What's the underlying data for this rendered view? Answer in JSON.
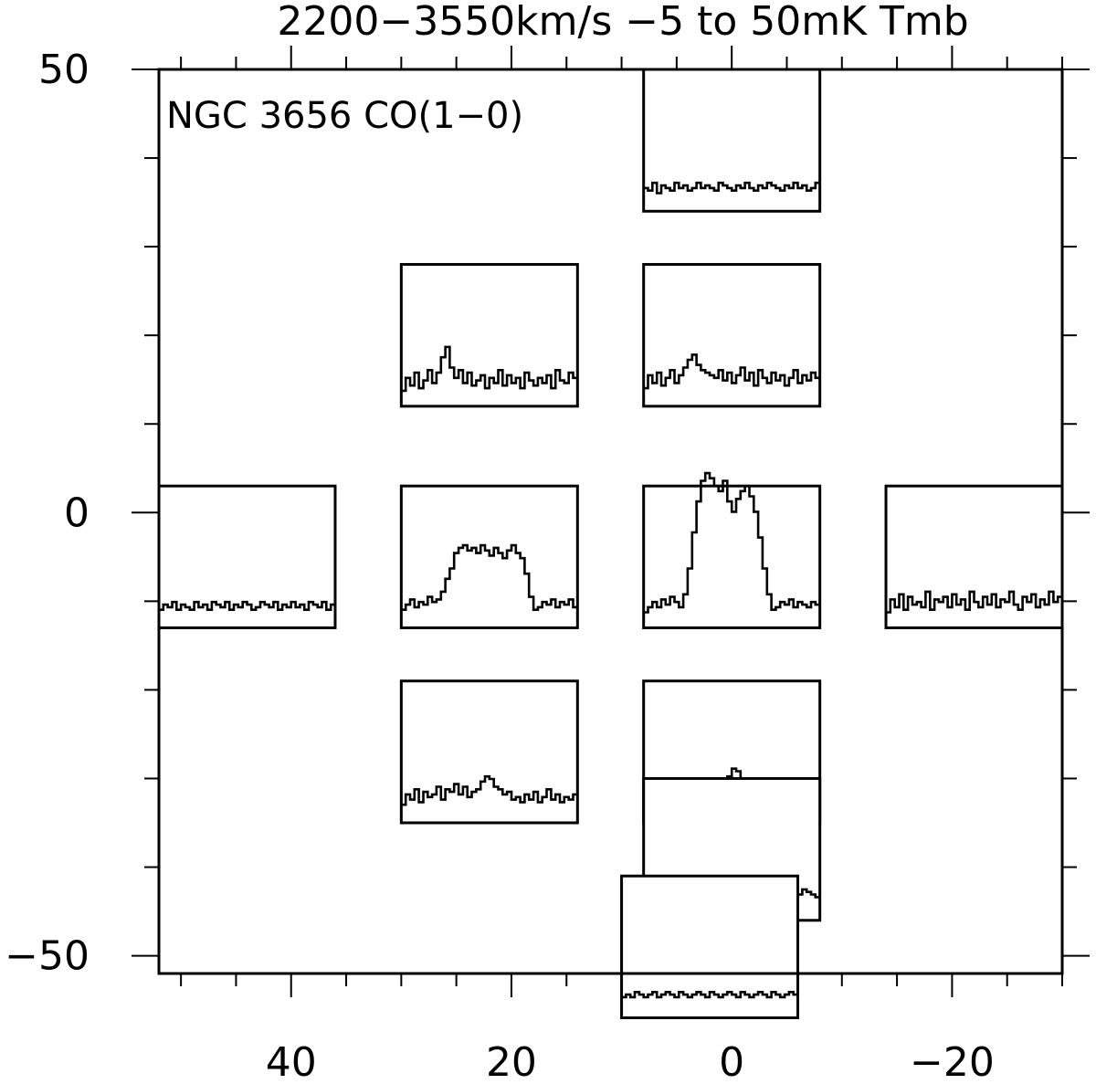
{
  "chart_data": {
    "type": "line",
    "title": "2200−3550km/s −5 to 50mK Tmb",
    "annotation": "NGC 3656 CO(1−0)",
    "xlabel": "",
    "ylabel": "",
    "xlim": [
      52,
      -30
    ],
    "ylim": [
      -52,
      50
    ],
    "x_tick_labels": [
      "40",
      "20",
      "0",
      "−20"
    ],
    "y_tick_labels": [
      "50",
      "0",
      "−50"
    ],
    "x_ticks": [
      40,
      20,
      0,
      -20
    ],
    "y_ticks": [
      50,
      0,
      -50
    ],
    "x_minor_step": 5,
    "y_minor_step": 10,
    "velocity_range_kms": [
      2200,
      3550
    ],
    "intensity_range_mK": [
      -5,
      50
    ],
    "spectra": [
      {
        "name": "",
        "offset": [
          0,
          42
        ],
        "values": [
          4,
          3,
          6,
          2,
          5,
          4,
          3,
          6,
          4,
          5,
          3,
          4,
          6,
          4,
          5,
          4,
          3,
          6,
          5,
          4,
          3,
          5,
          4,
          6,
          4,
          3,
          5,
          4,
          6,
          5,
          4,
          3,
          5,
          4,
          6,
          4,
          5,
          3,
          4,
          6
        ]
      },
      {
        "name": "",
        "offset": [
          22,
          20
        ],
        "values": [
          1,
          6,
          3,
          8,
          2,
          5,
          9,
          4,
          8,
          14,
          18,
          10,
          6,
          9,
          4,
          8,
          3,
          5,
          7,
          2,
          6,
          4,
          9,
          3,
          7,
          4,
          6,
          2,
          8,
          5,
          3,
          6,
          4,
          7,
          2,
          9,
          5,
          4,
          8,
          6
        ]
      },
      {
        "name": "",
        "offset": [
          0,
          20
        ],
        "values": [
          2,
          7,
          4,
          8,
          3,
          6,
          9,
          4,
          7,
          10,
          13,
          15,
          11,
          9,
          8,
          7,
          6,
          9,
          5,
          8,
          4,
          7,
          10,
          5,
          8,
          3,
          9,
          6,
          4,
          8,
          5,
          7,
          3,
          6,
          9,
          4,
          7,
          5,
          8,
          6
        ]
      },
      {
        "name": "",
        "offset": [
          44,
          -5
        ],
        "values": [
          2,
          4,
          3,
          5,
          2,
          4,
          3,
          2,
          5,
          3,
          4,
          2,
          5,
          4,
          3,
          5,
          2,
          4,
          3,
          5,
          4,
          2,
          3,
          5,
          4,
          3,
          5,
          2,
          4,
          3,
          5,
          3,
          4,
          2,
          5,
          4,
          3,
          5,
          2,
          4
        ]
      },
      {
        "name": "",
        "offset": [
          22,
          -5
        ],
        "values": [
          2,
          4,
          6,
          3,
          5,
          4,
          7,
          5,
          6,
          9,
          14,
          18,
          24,
          26,
          27,
          25,
          26,
          24,
          27,
          25,
          23,
          26,
          24,
          22,
          25,
          27,
          24,
          22,
          16,
          7,
          2,
          3,
          5,
          4,
          6,
          3,
          5,
          4,
          6,
          3
        ]
      },
      {
        "name": "",
        "offset": [
          0,
          -5
        ],
        "values": [
          1,
          3,
          5,
          3,
          6,
          4,
          7,
          5,
          3,
          8,
          18,
          32,
          44,
          52,
          55,
          53,
          50,
          48,
          52,
          44,
          40,
          45,
          48,
          50,
          46,
          40,
          30,
          18,
          8,
          2,
          3,
          5,
          4,
          6,
          3,
          5,
          4,
          3,
          5,
          4
        ]
      },
      {
        "name": "",
        "offset": [
          -22,
          -5
        ],
        "values": [
          1,
          6,
          3,
          8,
          2,
          7,
          4,
          5,
          3,
          9,
          2,
          6,
          5,
          7,
          3,
          8,
          4,
          6,
          2,
          9,
          5,
          3,
          7,
          4,
          8,
          3,
          6,
          5,
          9,
          4,
          2,
          7,
          5,
          8,
          3,
          6,
          4,
          9,
          5,
          7
        ]
      },
      {
        "name": "",
        "offset": [
          22,
          -27
        ],
        "values": [
          2,
          6,
          4,
          8,
          3,
          7,
          5,
          6,
          9,
          4,
          8,
          7,
          10,
          6,
          9,
          5,
          7,
          8,
          11,
          13,
          12,
          9,
          8,
          6,
          7,
          4,
          5,
          3,
          6,
          4,
          7,
          3,
          5,
          8,
          4,
          6,
          3,
          5,
          4,
          6
        ]
      },
      {
        "name": "",
        "offset": [
          0,
          -27
        ],
        "values": [
          2,
          4,
          3,
          5,
          4,
          6,
          5,
          7,
          6,
          5,
          4,
          6,
          8,
          7,
          9,
          8,
          10,
          11,
          10,
          13,
          16,
          15,
          12,
          10,
          9,
          7,
          8,
          6,
          5,
          7,
          4,
          6,
          5,
          3,
          4,
          5,
          3,
          4,
          5,
          4
        ]
      },
      {
        "name": "",
        "offset": [
          0,
          -38
        ],
        "values": [
          3,
          5,
          4,
          6,
          3,
          5,
          4,
          6,
          5,
          4,
          6,
          5,
          7,
          5,
          6,
          4,
          6,
          5,
          7,
          8,
          6,
          7,
          5,
          6,
          4,
          5,
          6,
          7,
          5,
          6,
          4,
          6,
          5,
          4,
          6,
          5,
          7,
          6,
          5,
          4
        ]
      },
      {
        "name": "",
        "offset": [
          2,
          -49
        ],
        "values": [
          3,
          4,
          3,
          5,
          4,
          3,
          4,
          5,
          3,
          4,
          5,
          4,
          3,
          5,
          4,
          3,
          4,
          5,
          4,
          3,
          5,
          4,
          3,
          4,
          5,
          4,
          3,
          5,
          4,
          3,
          4,
          5,
          4,
          3,
          5,
          4,
          3,
          4,
          5,
          4
        ]
      }
    ]
  }
}
